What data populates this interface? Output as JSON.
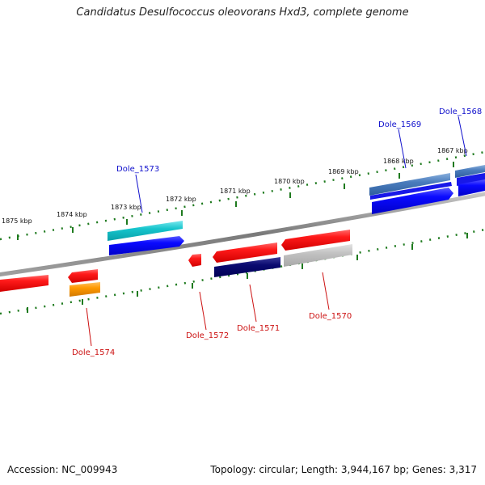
{
  "title": "Candidatus Desulfococcus oleovorans Hxd3, complete genome",
  "footer": {
    "accession": "Accession: NC_009943",
    "summary": "Topology: circular; Length: 3,944,167 bp; Genes: 3,317"
  },
  "colors": {
    "background": "#ffffff",
    "backbone": "#8a8a8a",
    "ticks": "#1e7a1e",
    "label_top": "#1010cc",
    "label_bottom": "#cc1111"
  },
  "kbp_labels": [
    "1875 kbp",
    "1874 kbp",
    "1873 kbp",
    "1872 kbp",
    "1871 kbp",
    "1870 kbp",
    "1869 kbp",
    "1868 kbp",
    "1867 kbp"
  ],
  "genes_top": [
    {
      "id": "dole-1573",
      "label": "Dole_1573"
    },
    {
      "id": "dole-1569",
      "label": "Dole_1569"
    },
    {
      "id": "dole-1568",
      "label": "Dole_1568"
    }
  ],
  "genes_bottom": [
    {
      "id": "dole-1574",
      "label": "Dole_1574"
    },
    {
      "id": "dole-1572",
      "label": "Dole_1572"
    },
    {
      "id": "dole-1571",
      "label": "Dole_1571"
    },
    {
      "id": "dole-1570",
      "label": "Dole_1570"
    }
  ]
}
